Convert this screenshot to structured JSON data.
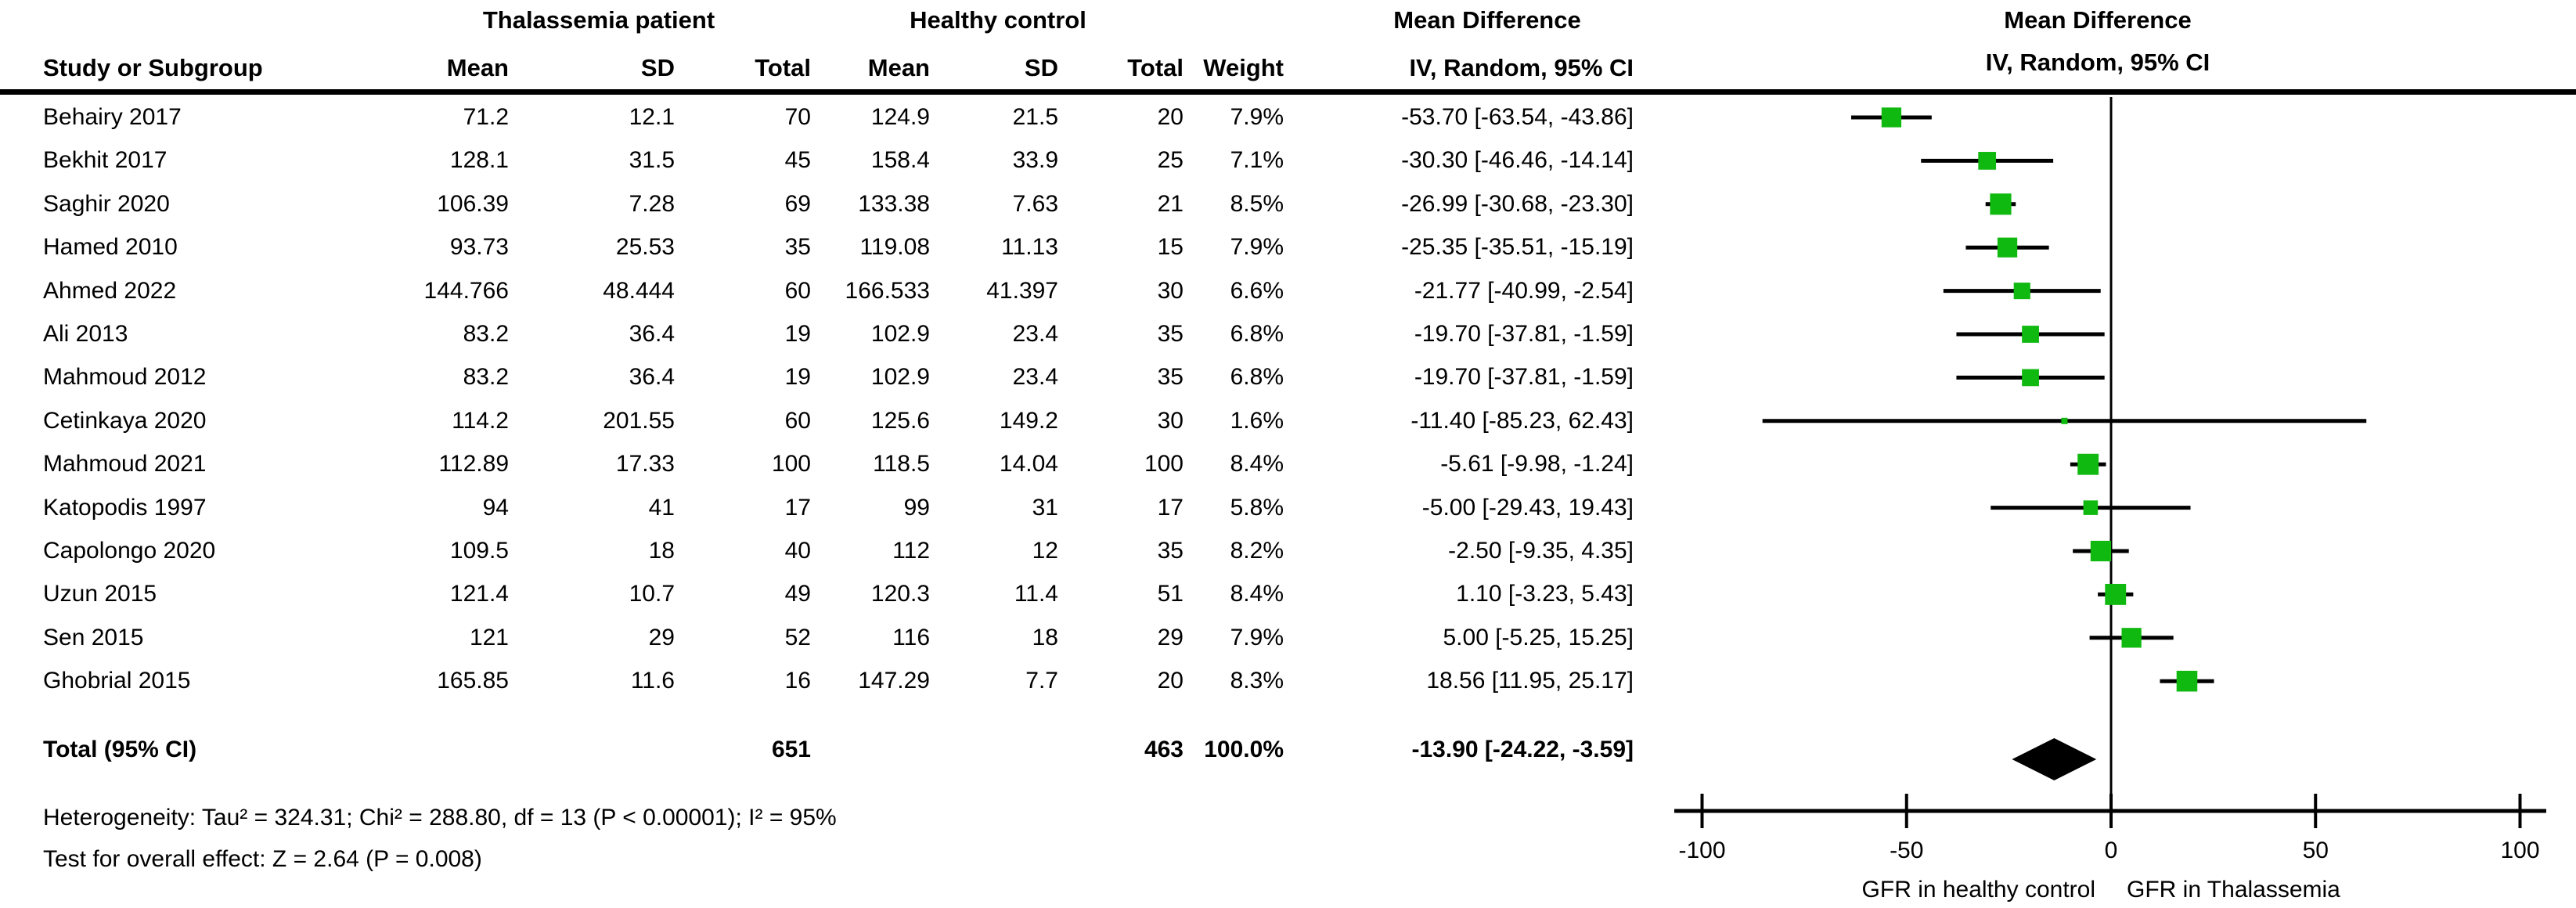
{
  "header": {
    "group1": "Thalassemia patient",
    "group2": "Healthy control",
    "effect_title": "Mean Difference",
    "effect_subtitle": "IV, Random, 95% CI",
    "plot_title": "Mean Difference",
    "plot_subtitle": "IV, Random, 95% CI",
    "cols": {
      "study": "Study or Subgroup",
      "mean": "Mean",
      "sd": "SD",
      "total": "Total",
      "weight": "Weight",
      "ci": "IV, Random, 95% CI"
    }
  },
  "footer": {
    "heterogeneity": "Heterogeneity: Tau² = 324.31; Chi² = 288.80, df = 13 (P < 0.00001); I² = 95%",
    "overall_effect": "Test for overall effect: Z = 2.64 (P = 0.008)"
  },
  "colors": {
    "marker_green": "#10b910",
    "text": "#000000",
    "background": "#ffffff"
  },
  "chart_data": {
    "type": "forest",
    "effect_measure": "Mean Difference, IV, Random, 95% CI",
    "xlim": [
      -100,
      100
    ],
    "xticks": [
      -100,
      -50,
      0,
      50,
      100
    ],
    "xtick_labels": [
      "-100",
      "-50",
      "0",
      "50",
      "100"
    ],
    "xlabel_left": "GFR in healthy control",
    "xlabel_right": "GFR in Thalassemia",
    "studies": [
      {
        "name": "Behairy 2017",
        "mean_t": "71.2",
        "sd_t": "12.1",
        "n_t": "70",
        "mean_c": "124.9",
        "sd_c": "21.5",
        "n_c": "20",
        "weight": "7.9%",
        "ci": "-53.70 [-63.54, -43.86]",
        "est": -53.7,
        "lo": -63.54,
        "hi": -43.86,
        "w": 7.9
      },
      {
        "name": "Bekhit 2017",
        "mean_t": "128.1",
        "sd_t": "31.5",
        "n_t": "45",
        "mean_c": "158.4",
        "sd_c": "33.9",
        "n_c": "25",
        "weight": "7.1%",
        "ci": "-30.30 [-46.46, -14.14]",
        "est": -30.3,
        "lo": -46.46,
        "hi": -14.14,
        "w": 7.1
      },
      {
        "name": "Saghir 2020",
        "mean_t": "106.39",
        "sd_t": "7.28",
        "n_t": "69",
        "mean_c": "133.38",
        "sd_c": "7.63",
        "n_c": "21",
        "weight": "8.5%",
        "ci": "-26.99 [-30.68, -23.30]",
        "est": -26.99,
        "lo": -30.68,
        "hi": -23.3,
        "w": 8.5
      },
      {
        "name": "Hamed 2010",
        "mean_t": "93.73",
        "sd_t": "25.53",
        "n_t": "35",
        "mean_c": "119.08",
        "sd_c": "11.13",
        "n_c": "15",
        "weight": "7.9%",
        "ci": "-25.35 [-35.51, -15.19]",
        "est": -25.35,
        "lo": -35.51,
        "hi": -15.19,
        "w": 7.9
      },
      {
        "name": "Ahmed 2022",
        "mean_t": "144.766",
        "sd_t": "48.444",
        "n_t": "60",
        "mean_c": "166.533",
        "sd_c": "41.397",
        "n_c": "30",
        "weight": "6.6%",
        "ci": "-21.77 [-40.99, -2.54]",
        "est": -21.77,
        "lo": -40.99,
        "hi": -2.54,
        "w": 6.6
      },
      {
        "name": "Ali 2013",
        "mean_t": "83.2",
        "sd_t": "36.4",
        "n_t": "19",
        "mean_c": "102.9",
        "sd_c": "23.4",
        "n_c": "35",
        "weight": "6.8%",
        "ci": "-19.70 [-37.81, -1.59]",
        "est": -19.7,
        "lo": -37.81,
        "hi": -1.59,
        "w": 6.8
      },
      {
        "name": "Mahmoud 2012",
        "mean_t": "83.2",
        "sd_t": "36.4",
        "n_t": "19",
        "mean_c": "102.9",
        "sd_c": "23.4",
        "n_c": "35",
        "weight": "6.8%",
        "ci": "-19.70 [-37.81, -1.59]",
        "est": -19.7,
        "lo": -37.81,
        "hi": -1.59,
        "w": 6.8
      },
      {
        "name": "Cetinkaya 2020",
        "mean_t": "114.2",
        "sd_t": "201.55",
        "n_t": "60",
        "mean_c": "125.6",
        "sd_c": "149.2",
        "n_c": "30",
        "weight": "1.6%",
        "ci": "-11.40 [-85.23, 62.43]",
        "est": -11.4,
        "lo": -85.23,
        "hi": 62.43,
        "w": 1.6
      },
      {
        "name": "Mahmoud 2021",
        "mean_t": "112.89",
        "sd_t": "17.33",
        "n_t": "100",
        "mean_c": "118.5",
        "sd_c": "14.04",
        "n_c": "100",
        "weight": "8.4%",
        "ci": "-5.61 [-9.98, -1.24]",
        "est": -5.61,
        "lo": -9.98,
        "hi": -1.24,
        "w": 8.4
      },
      {
        "name": "Katopodis 1997",
        "mean_t": "94",
        "sd_t": "41",
        "n_t": "17",
        "mean_c": "99",
        "sd_c": "31",
        "n_c": "17",
        "weight": "5.8%",
        "ci": "-5.00 [-29.43, 19.43]",
        "est": -5.0,
        "lo": -29.43,
        "hi": 19.43,
        "w": 5.8
      },
      {
        "name": "Capolongo 2020",
        "mean_t": "109.5",
        "sd_t": "18",
        "n_t": "40",
        "mean_c": "112",
        "sd_c": "12",
        "n_c": "35",
        "weight": "8.2%",
        "ci": "-2.50 [-9.35, 4.35]",
        "est": -2.5,
        "lo": -9.35,
        "hi": 4.35,
        "w": 8.2
      },
      {
        "name": "Uzun 2015",
        "mean_t": "121.4",
        "sd_t": "10.7",
        "n_t": "49",
        "mean_c": "120.3",
        "sd_c": "11.4",
        "n_c": "51",
        "weight": "8.4%",
        "ci": "1.10 [-3.23, 5.43]",
        "est": 1.1,
        "lo": -3.23,
        "hi": 5.43,
        "w": 8.4
      },
      {
        "name": "Sen 2015",
        "mean_t": "121",
        "sd_t": "29",
        "n_t": "52",
        "mean_c": "116",
        "sd_c": "18",
        "n_c": "29",
        "weight": "7.9%",
        "ci": "5.00 [-5.25, 15.25]",
        "est": 5.0,
        "lo": -5.25,
        "hi": 15.25,
        "w": 7.9
      },
      {
        "name": "Ghobrial 2015",
        "mean_t": "165.85",
        "sd_t": "11.6",
        "n_t": "16",
        "mean_c": "147.29",
        "sd_c": "7.7",
        "n_c": "20",
        "weight": "8.3%",
        "ci": "18.56 [11.95, 25.17]",
        "est": 18.56,
        "lo": 11.95,
        "hi": 25.17,
        "w": 8.3
      }
    ],
    "total": {
      "label": "Total (95% CI)",
      "n_t": "651",
      "n_c": "463",
      "weight": "100.0%",
      "ci": "-13.90 [-24.22, -3.59]",
      "est": -13.9,
      "lo": -24.22,
      "hi": -3.59
    }
  }
}
